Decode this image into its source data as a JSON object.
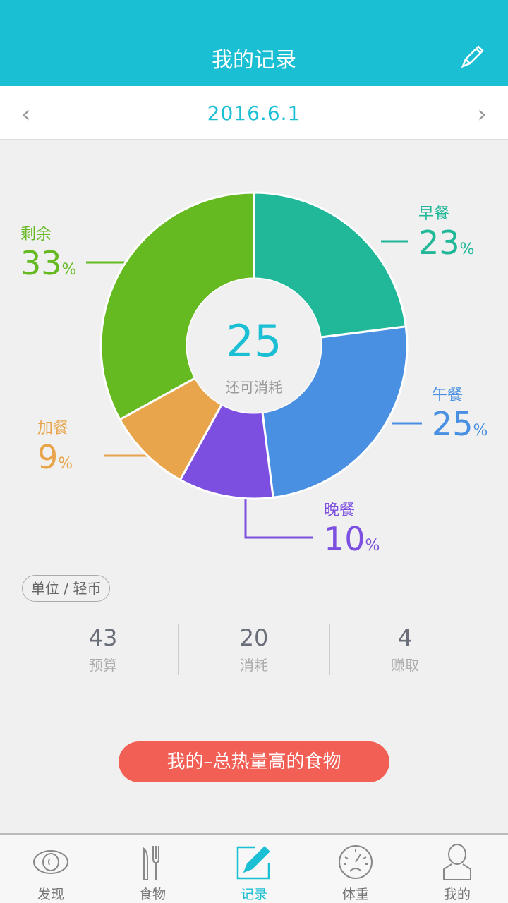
{
  "header": {
    "title": "我的记录"
  },
  "date_nav": {
    "date": "2016.6.1",
    "prev": "‹",
    "next": "›"
  },
  "chart_data": {
    "type": "pie",
    "donut": true,
    "center_value": "25",
    "center_label": "还可消耗",
    "slices": [
      {
        "name": "早餐",
        "value": 23,
        "color": "#20b898"
      },
      {
        "name": "午餐",
        "value": 25,
        "color": "#4a90e2"
      },
      {
        "name": "晚餐",
        "value": 10,
        "color": "#7c4fe0"
      },
      {
        "name": "加餐",
        "value": 9,
        "color": "#e8a54b"
      },
      {
        "name": "剩余",
        "value": 33,
        "color": "#65b921"
      }
    ],
    "unit_symbol": "%"
  },
  "unit_label": "单位 / 轻币",
  "stats": [
    {
      "value": "43",
      "label": "预算"
    },
    {
      "value": "20",
      "label": "消耗"
    },
    {
      "value": "4",
      "label": "赚取"
    }
  ],
  "cta": "我的–总热量高的食物",
  "tabs": [
    {
      "label": "发现",
      "icon": "eye-icon"
    },
    {
      "label": "食物",
      "icon": "utensils-icon"
    },
    {
      "label": "记录",
      "icon": "edit-icon",
      "active": true
    },
    {
      "label": "体重",
      "icon": "scale-icon"
    },
    {
      "label": "我的",
      "icon": "user-icon"
    }
  ],
  "colors": {
    "primary": "#1bbfd3",
    "cta": "#f25f55"
  }
}
